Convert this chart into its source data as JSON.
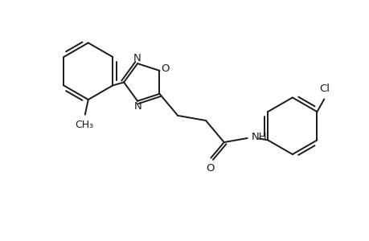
{
  "background_color": "#ffffff",
  "line_color": "#1a1a1a",
  "line_width": 1.4,
  "font_size": 9.5,
  "fig_width": 4.6,
  "fig_height": 3.0,
  "dpi": 100,
  "xlim": [
    0,
    9.2
  ],
  "ylim": [
    0,
    6.0
  ]
}
